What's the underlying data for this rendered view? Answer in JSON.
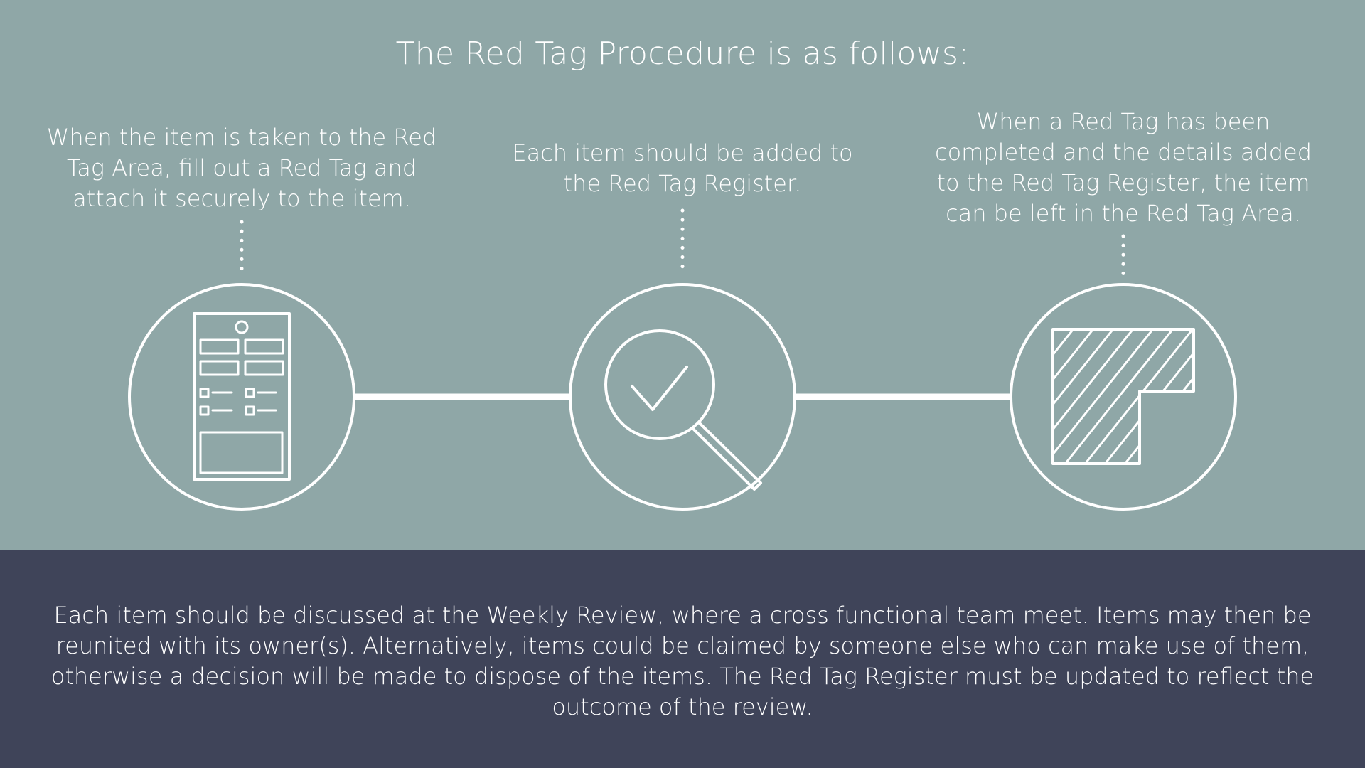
{
  "title": "The Red Tag Procedure is as follows:",
  "steps": [
    {
      "lines": [
        "When the item is taken to the Red",
        "Tag Area, fill out a Red Tag and",
        "attach it securely to the item."
      ],
      "icon": "red-tag-form-icon"
    },
    {
      "lines": [
        "Each item should be added to",
        "the Red Tag Register."
      ],
      "icon": "magnifier-check-icon"
    },
    {
      "lines": [
        "When a Red Tag has been",
        "completed and the details added",
        "to the Red Tag Register, the item",
        "can be left in the Red Tag Area."
      ],
      "icon": "red-tag-area-icon"
    }
  ],
  "summary": {
    "lines": [
      "Each item should be discussed at the Weekly Review, where a cross functional team meet. Items may then be",
      "reunited with its owner(s). Alternatively, items could be claimed by someone else who can make use of them,",
      "otherwise a decision will be made to dispose of the items. The Red Tag Register must be updated to reflect the",
      "outcome of the review."
    ]
  },
  "colors": {
    "top_background": "#8fa7a7",
    "bottom_background": "#3f4459",
    "foreground": "#ffffff"
  }
}
